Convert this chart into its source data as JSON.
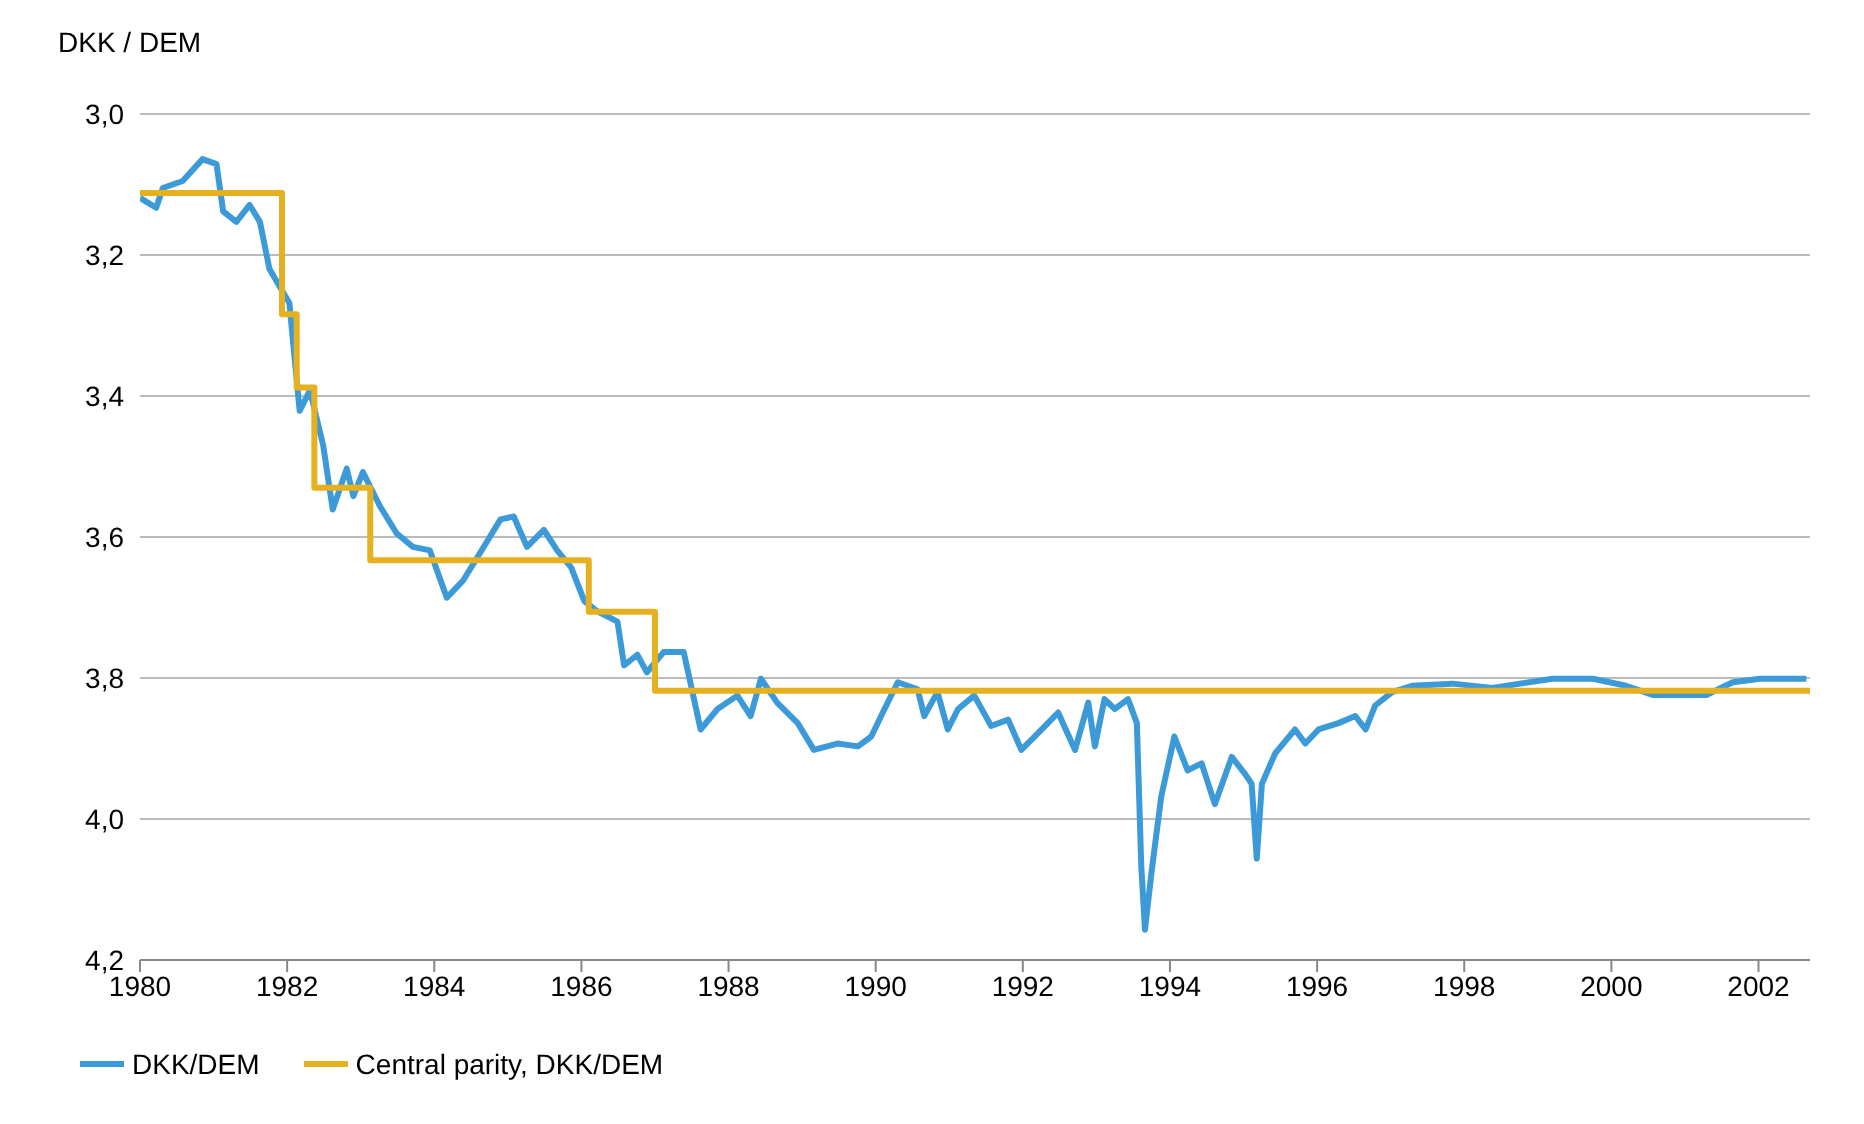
{
  "chart_data": {
    "type": "line",
    "ylabel": "DKK / DEM",
    "xlim": [
      1980,
      2002.7
    ],
    "xticks": [
      1980,
      1982,
      1984,
      1986,
      1988,
      1990,
      1992,
      1994,
      1996,
      1998,
      2000,
      2002
    ],
    "ylim": [
      4.2,
      3.0
    ],
    "yticks": [
      {
        "value": 3.0,
        "label": "3,0"
      },
      {
        "value": 3.2,
        "label": "3,2"
      },
      {
        "value": 3.4,
        "label": "3,4"
      },
      {
        "value": 3.6,
        "label": "3,6"
      },
      {
        "value": 3.8,
        "label": "3,8"
      },
      {
        "value": 4.0,
        "label": "4,0"
      },
      {
        "value": 4.2,
        "label": "4,2"
      }
    ],
    "grid": "y",
    "legend": "bottom left",
    "marker": "none",
    "line_style": "solid",
    "series": [
      {
        "name": "DKK/DEM",
        "color": "#3d9ad9",
        "type": "line",
        "x": [
          1980.0,
          1980.22,
          1980.31,
          1980.58,
          1980.85,
          1981.04,
          1981.13,
          1981.31,
          1981.49,
          1981.63,
          1981.76,
          1982.03,
          1982.17,
          1982.31,
          1982.49,
          1982.62,
          1982.81,
          1982.9,
          1983.03,
          1983.26,
          1983.49,
          1983.71,
          1983.94,
          1984.17,
          1984.39,
          1984.62,
          1984.9,
          1985.08,
          1985.26,
          1985.49,
          1985.67,
          1985.86,
          1986.04,
          1986.21,
          1986.49,
          1986.58,
          1986.76,
          1986.89,
          1987.12,
          1987.39,
          1987.62,
          1987.85,
          1988.12,
          1988.3,
          1988.44,
          1988.66,
          1988.94,
          1989.16,
          1989.48,
          1989.76,
          1989.94,
          1990.12,
          1990.3,
          1990.57,
          1990.66,
          1990.84,
          1990.98,
          1991.12,
          1991.34,
          1991.57,
          1991.8,
          1991.98,
          1992.21,
          1992.48,
          1992.71,
          1992.89,
          1992.98,
          1993.11,
          1993.25,
          1993.43,
          1993.55,
          1993.61,
          1993.66,
          1993.75,
          1993.88,
          1994.06,
          1994.24,
          1994.43,
          1994.61,
          1994.84,
          1995.02,
          1995.11,
          1995.18,
          1995.25,
          1995.43,
          1995.7,
          1995.84,
          1996.02,
          1996.29,
          1996.52,
          1996.66,
          1996.79,
          1997.02,
          1997.29,
          1997.84,
          1998.38,
          1999.2,
          1999.75,
          2000.2,
          2000.56,
          2001.02,
          2001.29,
          2001.65,
          2002.02,
          2002.65
        ],
        "values": [
          3.119,
          3.133,
          3.105,
          3.095,
          3.064,
          3.071,
          3.138,
          3.153,
          3.129,
          3.153,
          3.22,
          3.268,
          3.421,
          3.392,
          3.47,
          3.561,
          3.503,
          3.542,
          3.508,
          3.556,
          3.595,
          3.614,
          3.619,
          3.686,
          3.662,
          3.623,
          3.575,
          3.571,
          3.614,
          3.59,
          3.619,
          3.643,
          3.691,
          3.705,
          3.72,
          3.782,
          3.767,
          3.792,
          3.763,
          3.763,
          3.873,
          3.844,
          3.825,
          3.854,
          3.801,
          3.835,
          3.864,
          3.902,
          3.893,
          3.897,
          3.883,
          3.844,
          3.806,
          3.816,
          3.854,
          3.82,
          3.873,
          3.844,
          3.825,
          3.868,
          3.859,
          3.902,
          3.878,
          3.849,
          3.902,
          3.835,
          3.897,
          3.83,
          3.844,
          3.83,
          3.864,
          4.066,
          4.157,
          4.075,
          3.969,
          3.883,
          3.931,
          3.921,
          3.979,
          3.912,
          3.936,
          3.95,
          4.056,
          3.95,
          3.907,
          3.873,
          3.893,
          3.873,
          3.864,
          3.854,
          3.873,
          3.839,
          3.82,
          3.811,
          3.808,
          3.814,
          3.801,
          3.801,
          3.811,
          3.824,
          3.824,
          3.824,
          3.806,
          3.801,
          3.801
        ]
      },
      {
        "name": "Central parity, DKK/DEM",
        "color": "#e6b120",
        "type": "step",
        "x": [
          1980.0,
          1981.93,
          1982.13,
          1982.37,
          1983.13,
          1986.1,
          1987.0,
          2002.7
        ],
        "values": [
          3.112,
          3.284,
          3.388,
          3.53,
          3.633,
          3.706,
          3.818,
          3.818
        ]
      }
    ]
  }
}
